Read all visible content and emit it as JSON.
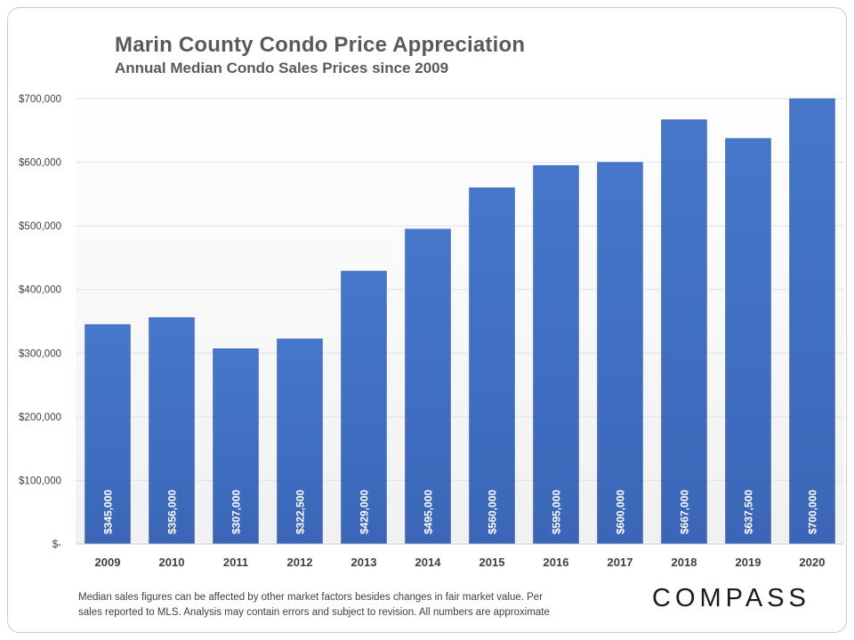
{
  "chart_data": {
    "type": "bar",
    "title": "Marin County Condo Price Appreciation",
    "subtitle": "Annual Median Condo Sales Prices since 2009",
    "xlabel": "",
    "ylabel": "",
    "categories": [
      "2009",
      "2010",
      "2011",
      "2012",
      "2013",
      "2014",
      "2015",
      "2016",
      "2017",
      "2018",
      "2019",
      "2020"
    ],
    "values": [
      345000,
      356000,
      307000,
      322500,
      429000,
      495000,
      560000,
      595000,
      600000,
      667000,
      637500,
      700000
    ],
    "data_labels": [
      "$345,000",
      "$356,000",
      "$307,000",
      "$322,500",
      "$429,000",
      "$495,000",
      "$560,000",
      "$595,000",
      "$600,000",
      "$667,000",
      "$637,500",
      "$700,000"
    ],
    "ylim": [
      0,
      700000
    ],
    "yticks": [
      0,
      100000,
      200000,
      300000,
      400000,
      500000,
      600000,
      700000
    ],
    "ytick_labels": [
      "$-",
      "$100,000",
      "$200,000",
      "$300,000",
      "$400,000",
      "$500,000",
      "$600,000",
      "$700,000"
    ],
    "grid": true,
    "bar_color": "#4472c4"
  },
  "footnote": {
    "line1": "Median sales figures can be affected by other market factors besides changes in fair market value. Per",
    "line2": "sales reported to MLS. Analysis may contain errors and subject to revision. All numbers are approximate"
  },
  "brand": {
    "logo_text": "COMPASS"
  }
}
